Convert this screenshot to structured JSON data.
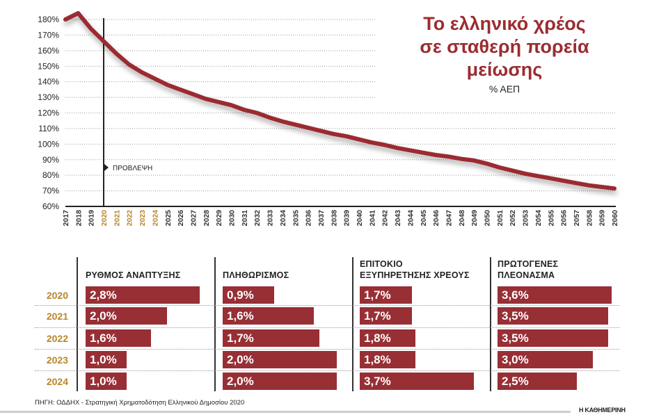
{
  "title": "Το ελληνικό χρέος σε σταθερή πορεία μείωσης",
  "title_lines": [
    "Το ελληνικό χρέος",
    "σε σταθερή πορεία",
    "μείωσης"
  ],
  "subtitle": "% ΑΕΠ",
  "forecast_label": "ΠΡΟΒΛΕΨΗ",
  "colors": {
    "line": "#9b2a30",
    "title": "#9b2c30",
    "bar": "#972f35",
    "year_highlight": "#b8862c"
  },
  "chart_data": [
    {
      "type": "line",
      "title": "Το ελληνικό χρέος σε σταθερή πορεία μείωσης",
      "ylabel": "% ΑΕΠ",
      "xlabel": "",
      "ylim": [
        60,
        180
      ],
      "yticks": [
        "60%",
        "70%",
        "80%",
        "90%",
        "100%",
        "110%",
        "120%",
        "130%",
        "140%",
        "150%",
        "160%",
        "170%",
        "180%"
      ],
      "grid": true,
      "forecast_start": 2020,
      "highlight_years": [
        2020,
        2021,
        2022,
        2023,
        2024
      ],
      "x": [
        2017,
        2018,
        2019,
        2020,
        2021,
        2022,
        2023,
        2024,
        2025,
        2026,
        2027,
        2028,
        2029,
        2030,
        2031,
        2032,
        2033,
        2034,
        2035,
        2036,
        2037,
        2038,
        2039,
        2040,
        2041,
        2042,
        2043,
        2044,
        2045,
        2046,
        2047,
        2048,
        2049,
        2050,
        2051,
        2052,
        2053,
        2054,
        2055,
        2056,
        2057,
        2058,
        2059,
        2060
      ],
      "series": [
        {
          "name": "Χρέος % ΑΕΠ",
          "values": [
            180,
            184,
            174,
            166,
            158,
            151,
            146,
            142,
            138,
            135,
            132,
            129,
            127,
            125,
            122,
            120,
            117,
            114.5,
            112.5,
            110.5,
            108.5,
            106.5,
            105,
            103,
            101,
            99.5,
            97.5,
            96,
            94.5,
            93,
            92,
            90.5,
            89.5,
            87.5,
            85,
            83,
            81,
            79.5,
            78,
            76.5,
            75,
            73.5,
            72.5,
            71.5
          ]
        }
      ]
    },
    {
      "type": "bar",
      "orientation": "horizontal",
      "categories": [
        "2020",
        "2021",
        "2022",
        "2023",
        "2024"
      ],
      "series": [
        {
          "name": "ΡΥΘΜΟΣ ΑΝΑΠΤΥΞΗΣ",
          "header_lines": [
            "",
            "ΡΥΘΜΟΣ ΑΝΑΠΤΥΞΗΣ"
          ],
          "values": [
            2.8,
            2.0,
            1.6,
            1.0,
            1.0
          ],
          "labels": [
            "2,8%",
            "2,0%",
            "1,6%",
            "1,0%",
            "1,0%"
          ]
        },
        {
          "name": "ΠΛΗΘΩΡΙΣΜΟΣ",
          "header_lines": [
            "",
            "ΠΛΗΘΩΡΙΣΜΟΣ"
          ],
          "values": [
            0.9,
            1.6,
            1.7,
            2.0,
            2.0
          ],
          "labels": [
            "0,9%",
            "1,6%",
            "1,7%",
            "2,0%",
            "2,0%"
          ]
        },
        {
          "name": "ΕΠΙΤΟΚΙΟ ΕΞΥΠΗΡΕΤΗΣΗΣ ΧΡΕΟΥΣ",
          "header_lines": [
            "ΕΠΙΤΟΚΙΟ",
            "ΕΞΥΠΗΡΕΤΗΣΗΣ ΧΡΕΟΥΣ"
          ],
          "values": [
            1.7,
            1.7,
            1.8,
            1.8,
            3.7
          ],
          "labels": [
            "1,7%",
            "1,7%",
            "1,8%",
            "1,8%",
            "3,7%"
          ]
        },
        {
          "name": "ΠΡΩΤΟΓΕΝΕΣ ΠΛΕΟΝΑΣΜΑ",
          "header_lines": [
            "ΠΡΩΤΟΓΕΝΕΣ",
            "ΠΛΕΟΝΑΣΜΑ"
          ],
          "values": [
            3.6,
            3.5,
            3.5,
            3.0,
            2.5
          ],
          "labels": [
            "3,6%",
            "3,5%",
            "3,5%",
            "3,0%",
            "2,5%"
          ]
        }
      ]
    }
  ],
  "source": "ΠΗΓΗ: ΟΔΔΗΧ - Στρατηγική Χρηματοδότηση Ελληνικού Δημοσίου 2020",
  "brand": "Η ΚΑΘΗΜΕΡΙΝΗ"
}
